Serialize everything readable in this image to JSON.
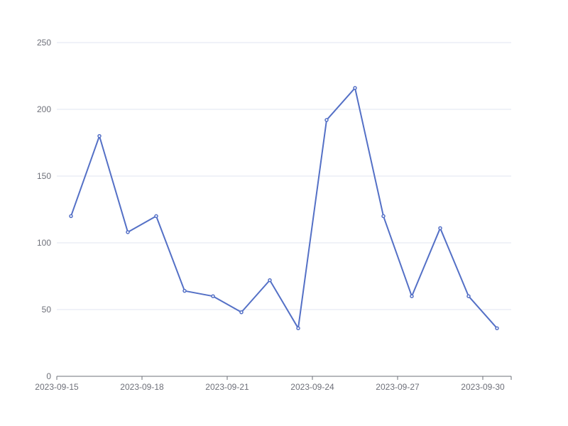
{
  "chart_data": {
    "type": "line",
    "title": "",
    "xlabel": "",
    "ylabel": "",
    "x": [
      "2023-09-15",
      "2023-09-16",
      "2023-09-17",
      "2023-09-18",
      "2023-09-19",
      "2023-09-20",
      "2023-09-21",
      "2023-09-22",
      "2023-09-23",
      "2023-09-24",
      "2023-09-25",
      "2023-09-26",
      "2023-09-27",
      "2023-09-28",
      "2023-09-29",
      "2023-09-30"
    ],
    "series": [
      {
        "values": [
          120,
          180,
          108,
          120,
          64,
          60,
          48,
          72,
          36,
          192,
          216,
          120,
          60,
          111,
          60,
          36
        ],
        "color": "#5470c6"
      }
    ],
    "xticks": [
      "2023-09-15",
      "2023-09-18",
      "2023-09-21",
      "2023-09-24",
      "2023-09-27",
      "2023-09-30"
    ],
    "ylim": [
      0,
      250
    ],
    "yticks": [
      0,
      50,
      100,
      150,
      200,
      250
    ],
    "grid": true,
    "legend": "none"
  }
}
